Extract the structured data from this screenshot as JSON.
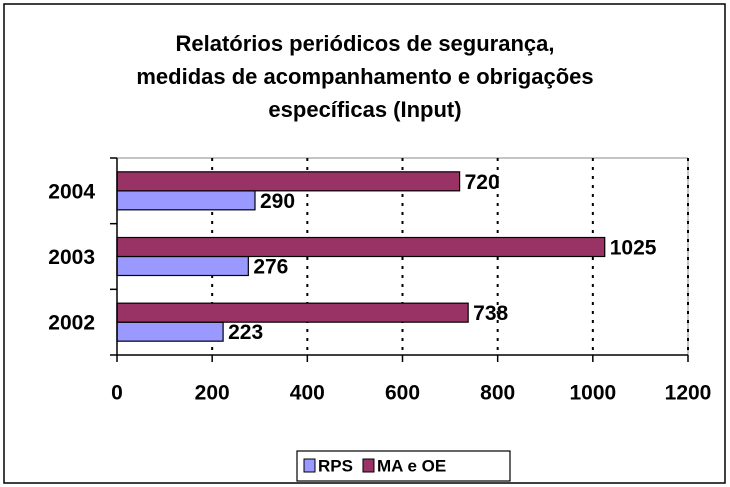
{
  "chart_data": {
    "type": "bar",
    "orientation": "horizontal",
    "title": [
      "Relatórios periódicos de segurança,",
      "medidas de acompanhamento e obrigações",
      "específicas (Input)"
    ],
    "categories": [
      "2002",
      "2003",
      "2004"
    ],
    "series": [
      {
        "name": "RPS",
        "color": "#9999ff",
        "values": [
          223,
          276,
          290
        ]
      },
      {
        "name": "MA e OE",
        "color": "#993366",
        "values": [
          738,
          1025,
          720
        ]
      }
    ],
    "xlim": [
      0,
      1200
    ],
    "xticks": [
      0,
      200,
      400,
      600,
      800,
      1000,
      1200
    ],
    "grid": true,
    "legend": "bottom"
  }
}
